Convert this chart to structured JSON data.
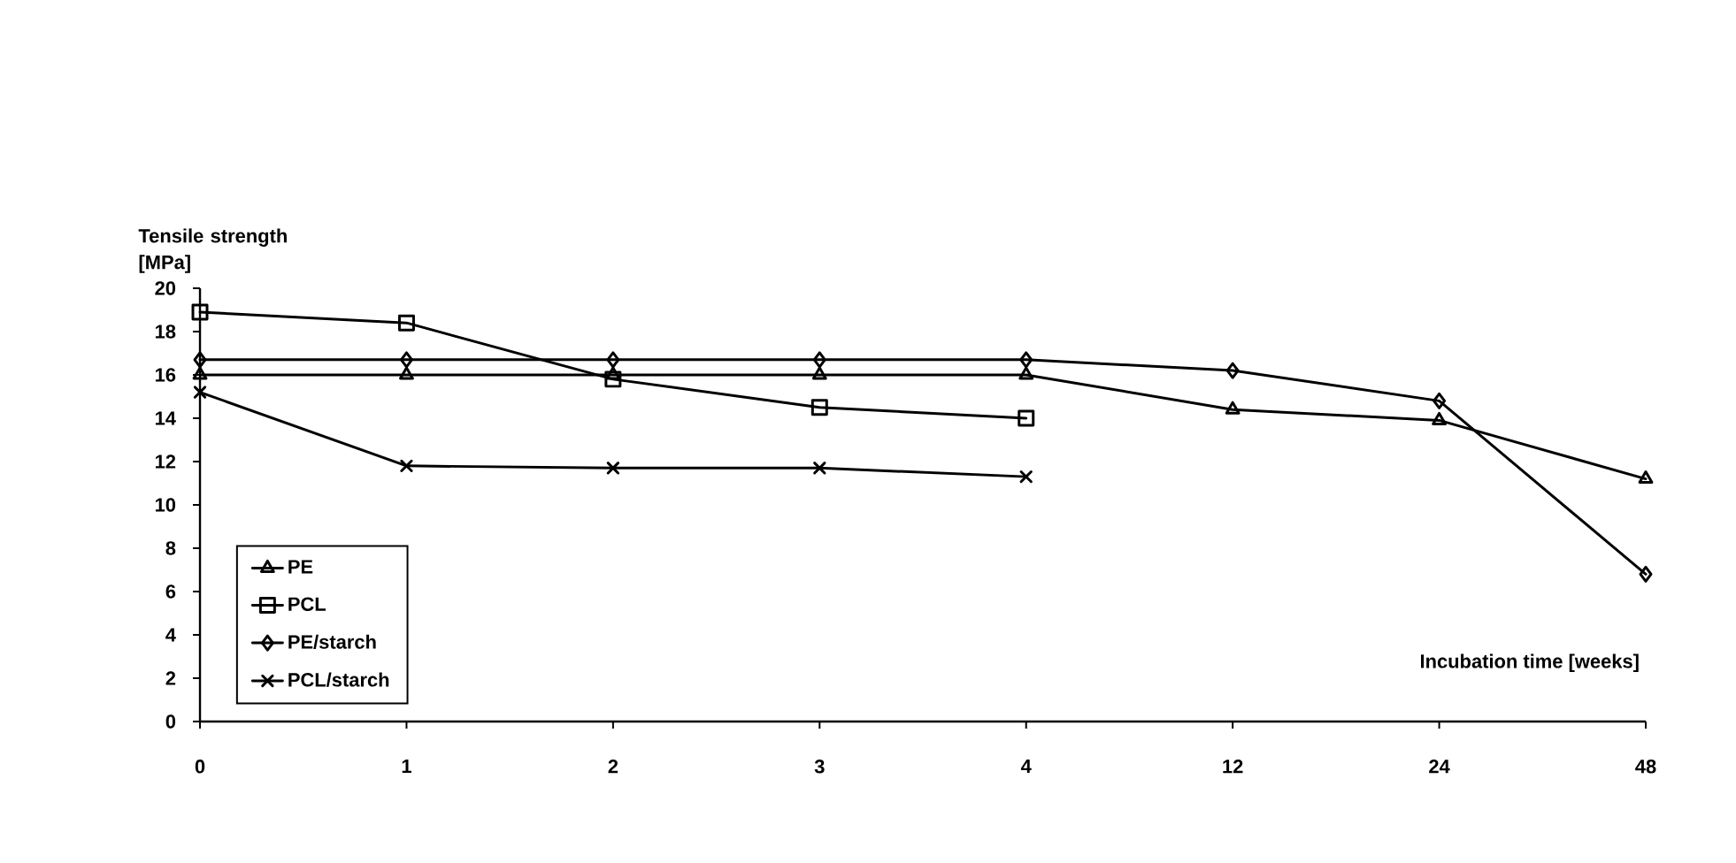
{
  "chart_data": {
    "type": "line",
    "xlabel": "Incubation time [weeks]",
    "ylabel": "Tensile strength [MPa]",
    "categories": [
      "0",
      "1",
      "2",
      "3",
      "4",
      "12",
      "24",
      "48"
    ],
    "ylim": [
      0,
      20
    ],
    "yticks": [
      0,
      2,
      4,
      6,
      8,
      10,
      12,
      14,
      16,
      18,
      20
    ],
    "grid": false,
    "legend": "bottom left",
    "line_style": "solid",
    "series": [
      {
        "name": "PE",
        "color": "#000000",
        "marker": "triangle",
        "values": [
          16,
          16,
          16,
          16,
          16,
          14.4,
          13.9,
          11.2
        ]
      },
      {
        "name": "PCL",
        "color": "#000000",
        "marker": "square",
        "values": [
          18.9,
          18.4,
          15.8,
          14.5,
          14.0,
          null,
          null,
          null
        ]
      },
      {
        "name": "PE/starch",
        "color": "#000000",
        "marker": "diamond",
        "values": [
          16.7,
          16.7,
          16.7,
          16.7,
          16.7,
          16.2,
          14.8,
          6.8
        ]
      },
      {
        "name": "PCL/starch",
        "color": "#000000",
        "marker": "cross",
        "values": [
          15.2,
          11.8,
          11.7,
          11.7,
          11.3,
          null,
          null,
          null
        ]
      }
    ]
  }
}
